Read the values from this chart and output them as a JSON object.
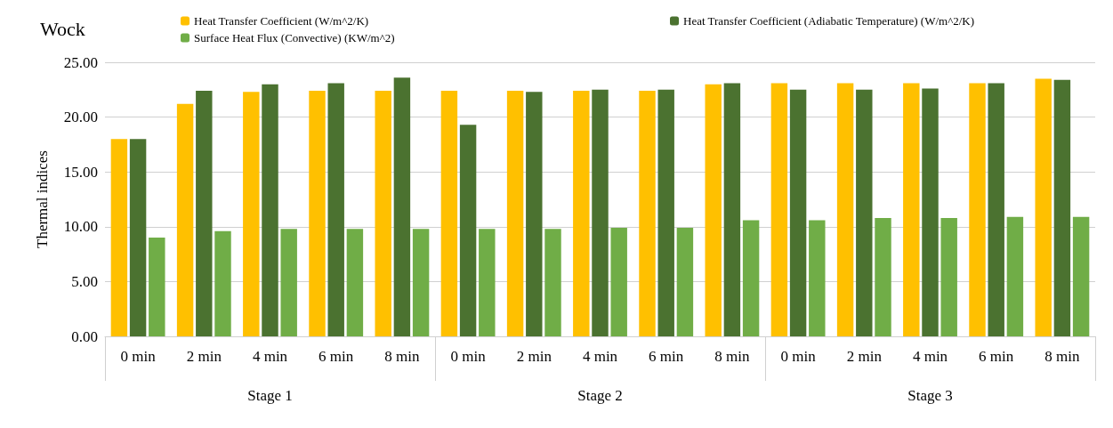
{
  "chart_data": {
    "type": "bar",
    "title": "Wock",
    "ylabel": "Thermal indices",
    "categories": [
      "0 min",
      "2 min",
      "4 min",
      "6 min",
      "8 min",
      "0 min",
      "2 min",
      "4 min",
      "6 min",
      "8 min",
      "0 min",
      "2 min",
      "4 min",
      "6 min",
      "8 min"
    ],
    "annotations": [
      "Stage 1",
      "Stage 2",
      "Stage 3"
    ],
    "series": [
      {
        "name": "Heat Transfer Coefficient (W/m^2/K)",
        "color": "#ffc000",
        "values": [
          18.0,
          21.2,
          22.3,
          22.4,
          22.4,
          22.4,
          22.4,
          22.4,
          22.4,
          23.0,
          23.1,
          23.1,
          23.1,
          23.1,
          23.5
        ]
      },
      {
        "name": "Heat Transfer Coefficient (Adiabatic Temperature) (W/m^2/K)",
        "color": "#4b7230",
        "values": [
          18.0,
          22.4,
          23.0,
          23.1,
          23.6,
          19.3,
          22.3,
          22.5,
          22.5,
          23.1,
          22.5,
          22.5,
          22.6,
          23.1,
          23.4
        ]
      },
      {
        "name": "Surface Heat Flux (Convective) (KW/m^2)",
        "color": "#70ad47",
        "values": [
          9.0,
          9.6,
          9.8,
          9.8,
          9.8,
          9.8,
          9.8,
          9.9,
          9.9,
          10.6,
          10.6,
          10.8,
          10.8,
          10.9,
          10.9
        ]
      }
    ],
    "ylim": [
      0,
      25
    ],
    "yticks": [
      {
        "value": 0,
        "label": "0.00"
      },
      {
        "value": 5,
        "label": "5.00"
      },
      {
        "value": 10,
        "label": "10.00"
      },
      {
        "value": 15,
        "label": "15.00"
      },
      {
        "value": 20,
        "label": "20.00"
      },
      {
        "value": 25,
        "label": "25.00"
      }
    ],
    "grid": "y",
    "legend": "top"
  }
}
